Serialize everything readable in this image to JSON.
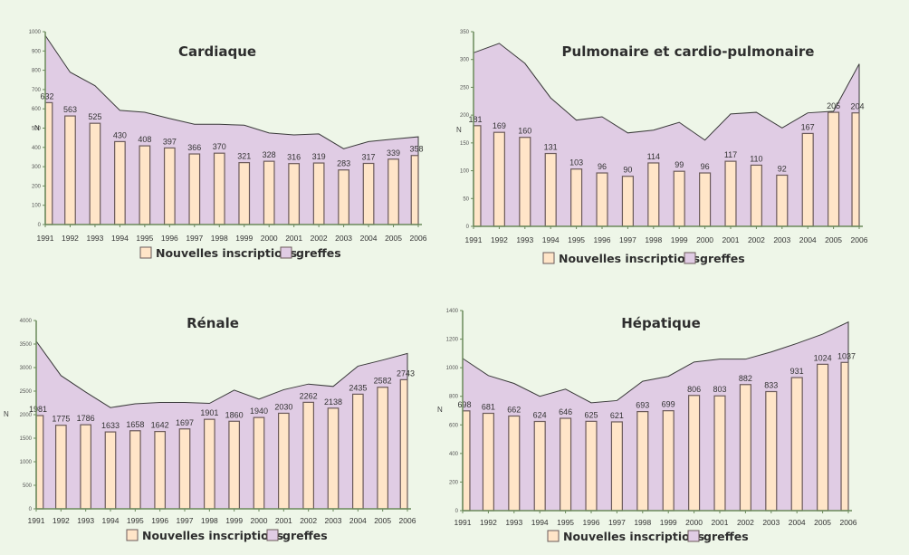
{
  "colors": {
    "background": "#eef6e8",
    "bar_fill": "#ffe5c8",
    "bar_stroke": "#6b5a5a",
    "area_fill": "#e0cce4",
    "area_stroke": "#3a3a3a",
    "axis": "#6a8a5a"
  },
  "legend": {
    "bars": "Nouvelles inscriptions",
    "area": "greffes"
  },
  "chart_data": [
    {
      "type": "bar",
      "title": "Cardiaque",
      "xlabel": "",
      "ylabel": "N",
      "ylim": [
        0,
        1000
      ],
      "yticks": [
        0,
        100,
        200,
        300,
        400,
        500,
        600,
        700,
        800,
        900,
        1000
      ],
      "categories": [
        "1991",
        "1992",
        "1993",
        "1994",
        "1995",
        "1996",
        "1997",
        "1998",
        "1999",
        "2000",
        "2001",
        "2002",
        "2003",
        "2004",
        "2005",
        "2006"
      ],
      "series": [
        {
          "name": "Nouvelles inscriptions",
          "type": "bar",
          "values": [
            632,
            563,
            525,
            430,
            408,
            397,
            366,
            370,
            321,
            328,
            316,
            319,
            283,
            317,
            339,
            358
          ]
        },
        {
          "name": "greffes",
          "type": "area",
          "values": [
            980,
            790,
            720,
            592,
            582,
            550,
            520,
            520,
            515,
            475,
            465,
            470,
            393,
            430,
            443,
            455
          ]
        }
      ],
      "legend_position": "bottom"
    },
    {
      "type": "bar",
      "title": "Pulmonaire et cardio-pulmonaire",
      "xlabel": "",
      "ylabel": "N",
      "ylim": [
        0,
        350
      ],
      "yticks": [
        0,
        50,
        100,
        150,
        200,
        250,
        300,
        350
      ],
      "categories": [
        "1991",
        "1992",
        "1993",
        "1994",
        "1995",
        "1996",
        "1997",
        "1998",
        "1999",
        "2000",
        "2001",
        "2002",
        "2003",
        "2004",
        "2005",
        "2006"
      ],
      "series": [
        {
          "name": "Nouvelles inscriptions",
          "type": "bar",
          "values": [
            181,
            169,
            160,
            131,
            103,
            96,
            90,
            114,
            99,
            96,
            117,
            110,
            92,
            167,
            205,
            204
          ]
        },
        {
          "name": "greffes",
          "type": "area",
          "values": [
            312,
            329,
            293,
            231,
            191,
            197,
            168,
            173,
            187,
            155,
            202,
            205,
            177,
            204,
            207,
            292
          ]
        }
      ],
      "legend_position": "bottom"
    },
    {
      "type": "bar",
      "title": "Rénale",
      "xlabel": "",
      "ylabel": "N",
      "ylim": [
        0,
        4000
      ],
      "yticks": [
        0,
        500,
        1000,
        1500,
        2000,
        2500,
        3000,
        3500,
        4000
      ],
      "categories": [
        "1991",
        "1992",
        "1993",
        "1994",
        "1995",
        "1996",
        "1997",
        "1998",
        "1999",
        "2000",
        "2001",
        "2002",
        "2003",
        "2004",
        "2005",
        "2006"
      ],
      "series": [
        {
          "name": "Nouvelles inscriptions",
          "type": "bar",
          "values": [
            1981,
            1775,
            1786,
            1633,
            1658,
            1642,
            1697,
            1901,
            1860,
            1940,
            2030,
            2262,
            2138,
            2435,
            2582,
            2743
          ]
        },
        {
          "name": "greffes",
          "type": "area",
          "values": [
            3560,
            2830,
            2480,
            2150,
            2230,
            2260,
            2260,
            2240,
            2520,
            2330,
            2530,
            2650,
            2600,
            3030,
            3160,
            3300
          ]
        }
      ],
      "legend_position": "bottom"
    },
    {
      "type": "bar",
      "title": "Hépatique",
      "xlabel": "",
      "ylabel": "N",
      "ylim": [
        0,
        1400
      ],
      "yticks": [
        0,
        200,
        400,
        600,
        800,
        1000,
        1200,
        1400
      ],
      "categories": [
        "1991",
        "1992",
        "1993",
        "1994",
        "1995",
        "1996",
        "1997",
        "1998",
        "1999",
        "2000",
        "2001",
        "2002",
        "2003",
        "2004",
        "2005",
        "2006"
      ],
      "series": [
        {
          "name": "Nouvelles inscriptions",
          "type": "bar",
          "values": [
            698,
            681,
            662,
            624,
            646,
            625,
            621,
            693,
            699,
            806,
            803,
            882,
            833,
            931,
            1024,
            1037
          ]
        },
        {
          "name": "greffes",
          "type": "area",
          "values": [
            1065,
            945,
            890,
            800,
            850,
            755,
            770,
            905,
            940,
            1040,
            1060,
            1060,
            1110,
            1170,
            1235,
            1320
          ]
        }
      ],
      "legend_position": "bottom"
    }
  ]
}
